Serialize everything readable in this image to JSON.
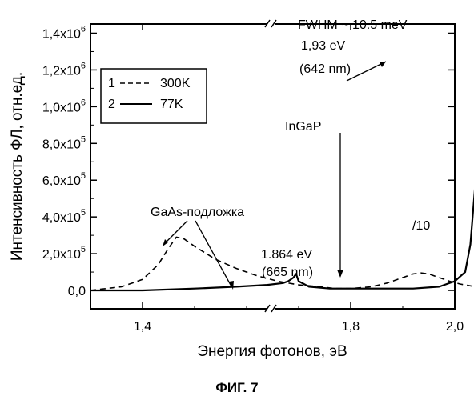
{
  "figure": {
    "caption": "ФИГ. 7"
  },
  "chart_data": {
    "type": "line",
    "xlabel": "Энергия фотонов, эВ",
    "ylabel": "Интенсивность ФЛ, отн.ед.",
    "xlim": [
      1.3,
      2.0
    ],
    "ylim": [
      -0.1,
      1.45
    ],
    "y_unit_multiplier": 1000000,
    "axis_break": {
      "x": 1.78,
      "shown_on": [
        "top",
        "bottom"
      ]
    },
    "x_ticks": [
      {
        "value": 1.4,
        "label": "1,4"
      },
      {
        "value": 1.8,
        "label": "1,8"
      },
      {
        "value": 2.0,
        "label": "2,0"
      }
    ],
    "y_ticks": [
      {
        "value": 0.0,
        "label": "0,0"
      },
      {
        "value": 0.2,
        "label": "2,0x10",
        "exp": "5"
      },
      {
        "value": 0.4,
        "label": "4,0x10",
        "exp": "5"
      },
      {
        "value": 0.6,
        "label": "6,0x10",
        "exp": "5"
      },
      {
        "value": 0.8,
        "label": "8,0x10",
        "exp": "5"
      },
      {
        "value": 1.0,
        "label": "1,0x10",
        "exp": "6"
      },
      {
        "value": 1.2,
        "label": "1,2x10",
        "exp": "6"
      },
      {
        "value": 1.4,
        "label": "1,4x10",
        "exp": "6"
      }
    ],
    "legend": {
      "placement": "upper-left",
      "entries": [
        {
          "index": "1",
          "name": "300K",
          "style": "dashed"
        },
        {
          "index": "2",
          "name": "77K",
          "style": "solid"
        }
      ]
    },
    "series": [
      {
        "name": "300K",
        "style": "dashed",
        "x": [
          1.3,
          1.36,
          1.4,
          1.43,
          1.45,
          1.465,
          1.48,
          1.5,
          1.54,
          1.58,
          1.62,
          1.66,
          1.7,
          1.74,
          1.77,
          1.8,
          1.84,
          1.87,
          1.9,
          1.92,
          1.935,
          1.95,
          1.97,
          1.99,
          2.01,
          2.03,
          2.05,
          2.08,
          2.1
        ],
        "y": [
          0.0,
          0.02,
          0.06,
          0.14,
          0.23,
          0.29,
          0.28,
          0.24,
          0.17,
          0.12,
          0.08,
          0.05,
          0.03,
          0.02,
          0.01,
          0.01,
          0.02,
          0.04,
          0.07,
          0.09,
          0.095,
          0.09,
          0.07,
          0.05,
          0.035,
          0.025,
          0.015,
          0.005,
          0.0
        ]
      },
      {
        "name": "77K",
        "style": "solid",
        "x": [
          1.3,
          1.4,
          1.5,
          1.58,
          1.64,
          1.67,
          1.68,
          1.69,
          1.695,
          1.7,
          1.72,
          1.76,
          1.8,
          1.86,
          1.92,
          1.97,
          2.0,
          2.02,
          2.03,
          2.04,
          2.05,
          2.055,
          2.06,
          2.065,
          2.07,
          2.08,
          2.09,
          2.11,
          2.13,
          2.16,
          2.2
        ],
        "y": [
          0.0,
          0.0,
          0.01,
          0.02,
          0.03,
          0.04,
          0.05,
          0.07,
          0.09,
          0.05,
          0.02,
          0.01,
          0.01,
          0.01,
          0.01,
          0.02,
          0.05,
          0.1,
          0.25,
          0.6,
          1.05,
          1.3,
          1.38,
          1.28,
          1.0,
          0.5,
          0.2,
          0.06,
          0.02,
          0.01,
          0.0
        ]
      }
    ],
    "annotations": {
      "fwhm": "FWHM  ~ 10.5 meV",
      "peak_energy": "1,93 eV",
      "peak_wavelength": "(642 nm)",
      "ingap": "InGaP",
      "divisor": "/10",
      "gaas": "GaAs-подложка",
      "second_energy": "1.864 eV",
      "second_wavelength": "(665 nm)"
    }
  }
}
